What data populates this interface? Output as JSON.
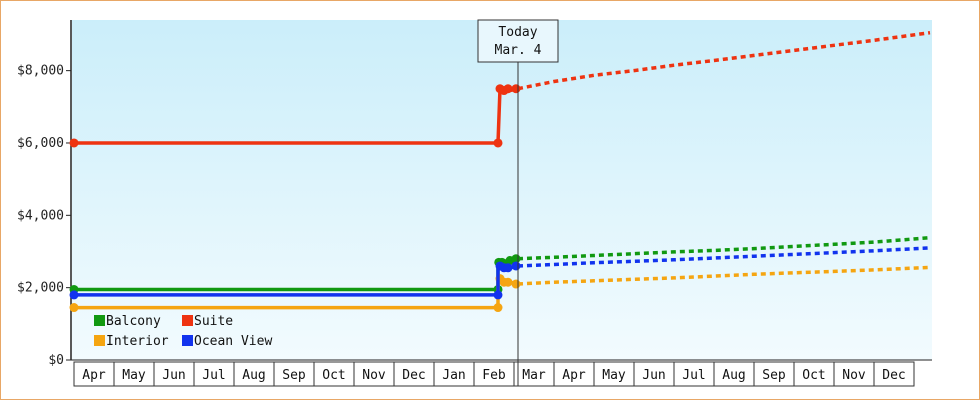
{
  "chart_data": {
    "type": "line",
    "title": "",
    "xlabel": "",
    "ylabel": "",
    "ylim": [
      0,
      9400
    ],
    "yticks": [
      0,
      2000,
      4000,
      6000,
      8000
    ],
    "ytick_labels": [
      "$0",
      "$2,000",
      "$4,000",
      "$6,000",
      "$8,000"
    ],
    "x_months": [
      "Apr",
      "May",
      "Jun",
      "Jul",
      "Aug",
      "Sep",
      "Oct",
      "Nov",
      "Dec",
      "Jan",
      "Feb",
      "Mar",
      "Apr",
      "May",
      "Jun",
      "Jul",
      "Aug",
      "Sep",
      "Oct",
      "Nov",
      "Dec"
    ],
    "today_marker": {
      "line1": "Today",
      "line2": "Mar. 4",
      "x_month": 11.1
    },
    "grid": false,
    "legend_position": "bottom-left",
    "series": [
      {
        "name": "Balcony",
        "color": "#119911",
        "actual": [
          [
            0,
            1950
          ],
          [
            10.6,
            1950
          ],
          [
            10.6,
            2700
          ],
          [
            10.7,
            2700
          ],
          [
            10.8,
            2650
          ],
          [
            10.9,
            2750
          ],
          [
            11.1,
            2800
          ]
        ],
        "markers": [
          [
            0,
            1950
          ],
          [
            10.6,
            1950
          ],
          [
            10.62,
            2700
          ],
          [
            10.7,
            2700
          ],
          [
            10.8,
            2650
          ],
          [
            10.9,
            2750
          ],
          [
            11.05,
            2800
          ]
        ],
        "projected": [
          [
            11.1,
            2800
          ],
          [
            12,
            2840
          ],
          [
            13,
            2890
          ],
          [
            14,
            2940
          ],
          [
            15,
            2990
          ],
          [
            16,
            3030
          ],
          [
            17,
            3080
          ],
          [
            18,
            3140
          ],
          [
            19,
            3200
          ],
          [
            20,
            3260
          ],
          [
            21.4,
            3380
          ]
        ]
      },
      {
        "name": "Suite",
        "color": "#ee3311",
        "actual": [
          [
            0,
            6000
          ],
          [
            10.6,
            6000
          ],
          [
            10.65,
            7500
          ],
          [
            10.72,
            7450
          ],
          [
            10.8,
            7500
          ],
          [
            10.9,
            7450
          ],
          [
            11.1,
            7500
          ]
        ],
        "markers": [
          [
            0,
            6000
          ],
          [
            10.6,
            6000
          ],
          [
            10.65,
            7500
          ],
          [
            10.75,
            7450
          ],
          [
            10.85,
            7500
          ],
          [
            11.05,
            7500
          ]
        ],
        "projected": [
          [
            11.1,
            7500
          ],
          [
            12,
            7700
          ],
          [
            13,
            7870
          ],
          [
            14,
            8000
          ],
          [
            15,
            8150
          ],
          [
            16,
            8280
          ],
          [
            17,
            8420
          ],
          [
            18,
            8560
          ],
          [
            19,
            8700
          ],
          [
            20,
            8840
          ],
          [
            21.4,
            9050
          ]
        ]
      },
      {
        "name": "Interior",
        "color": "#f5a511",
        "actual": [
          [
            0,
            1450
          ],
          [
            10.6,
            1450
          ],
          [
            10.6,
            2200
          ],
          [
            10.7,
            2150
          ],
          [
            10.8,
            2200
          ],
          [
            10.9,
            2150
          ],
          [
            11.1,
            2100
          ]
        ],
        "markers": [
          [
            0,
            1450
          ],
          [
            10.6,
            1450
          ],
          [
            10.65,
            2250
          ],
          [
            10.75,
            2150
          ],
          [
            10.85,
            2150
          ],
          [
            11.05,
            2100
          ]
        ],
        "projected": [
          [
            11.1,
            2100
          ],
          [
            12,
            2150
          ],
          [
            13,
            2190
          ],
          [
            14,
            2230
          ],
          [
            15,
            2270
          ],
          [
            16,
            2320
          ],
          [
            17,
            2370
          ],
          [
            18,
            2410
          ],
          [
            19,
            2450
          ],
          [
            20,
            2490
          ],
          [
            21.4,
            2560
          ]
        ]
      },
      {
        "name": "Ocean View",
        "color": "#1133ee",
        "actual": [
          [
            0,
            1800
          ],
          [
            10.6,
            1800
          ],
          [
            10.6,
            2550
          ],
          [
            10.7,
            2600
          ],
          [
            10.8,
            2550
          ],
          [
            10.9,
            2550
          ],
          [
            11.1,
            2600
          ]
        ],
        "markers": [
          [
            0,
            1800
          ],
          [
            10.6,
            1800
          ],
          [
            10.65,
            2600
          ],
          [
            10.75,
            2550
          ],
          [
            10.85,
            2550
          ],
          [
            11.05,
            2600
          ]
        ],
        "projected": [
          [
            11.1,
            2600
          ],
          [
            12,
            2640
          ],
          [
            13,
            2690
          ],
          [
            14,
            2730
          ],
          [
            15,
            2770
          ],
          [
            16,
            2820
          ],
          [
            17,
            2870
          ],
          [
            18,
            2920
          ],
          [
            19,
            2970
          ],
          [
            20,
            3020
          ],
          [
            21.4,
            3100
          ]
        ]
      }
    ]
  }
}
